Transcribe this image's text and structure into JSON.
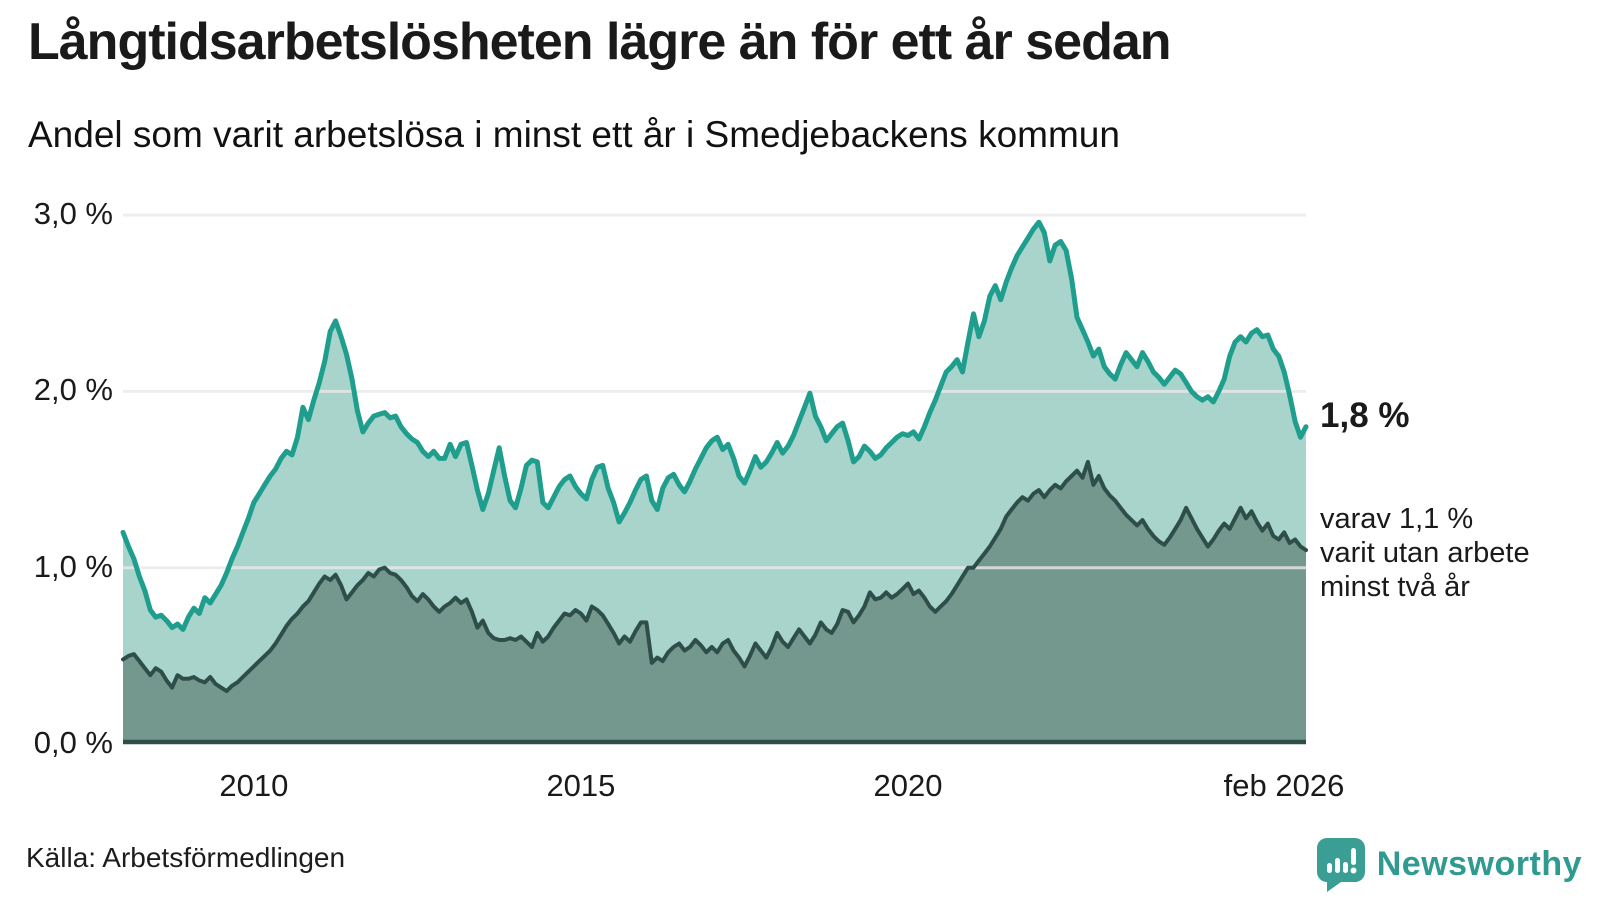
{
  "title": "Långtidsarbetslösheten lägre än för ett år sedan",
  "subtitle": "Andel som varit arbetslösa i minst ett år i Smedjebackens kommun",
  "source": "Källa: Arbetsförmedlingen",
  "branding": {
    "name": "Newsworthy"
  },
  "annotations": {
    "latest_total": "1,8 %",
    "secondary": "varav 1,1 %\nvarit utan arbete\nminst två år"
  },
  "colors": {
    "upper_stroke": "#1f9e8e",
    "upper_fill": "#a8d4cb",
    "lower_stroke": "#2e4f49",
    "lower_fill": "#74978e",
    "grid": "#e8e8e8",
    "brand_teal": "#2f9a8f",
    "icon_teal": "#3a9e94",
    "text": "#1a1a1a"
  },
  "chart_data": {
    "type": "area",
    "title": "Långtidsarbetslösheten lägre än för ett år sedan",
    "subtitle": "Andel som varit arbetslösa i minst ett år i Smedjebackens kommun",
    "unit": "%",
    "x_start_year": 2008,
    "x_start_month": 1,
    "x_end_label": "feb 2026",
    "step_months": 1,
    "ylim": [
      0,
      3.0
    ],
    "grid": "horizontal",
    "y_ticks": [
      {
        "label": "0,0 %",
        "value": 0
      },
      {
        "label": "1,0 %",
        "value": 1
      },
      {
        "label": "2,0 %",
        "value": 2
      },
      {
        "label": "3,0 %",
        "value": 3
      }
    ],
    "x_ticks": [
      {
        "label": "2010",
        "month_index": 24
      },
      {
        "label": "2015",
        "month_index": 84
      },
      {
        "label": "2020",
        "month_index": 144
      },
      {
        "label": "feb 2026",
        "month_index": 217
      }
    ],
    "series": [
      {
        "name": "Andel arbetslösa minst ett år",
        "latest_value": 1.8,
        "values": [
          1.2,
          1.12,
          1.05,
          0.95,
          0.87,
          0.76,
          0.72,
          0.73,
          0.7,
          0.66,
          0.68,
          0.65,
          0.72,
          0.77,
          0.74,
          0.83,
          0.8,
          0.85,
          0.9,
          0.97,
          1.05,
          1.12,
          1.2,
          1.28,
          1.37,
          1.42,
          1.47,
          1.52,
          1.56,
          1.62,
          1.66,
          1.64,
          1.74,
          1.91,
          1.84,
          1.95,
          2.05,
          2.17,
          2.34,
          2.4,
          2.31,
          2.21,
          2.07,
          1.89,
          1.77,
          1.82,
          1.86,
          1.87,
          1.88,
          1.85,
          1.86,
          1.8,
          1.76,
          1.73,
          1.71,
          1.66,
          1.63,
          1.66,
          1.62,
          1.62,
          1.7,
          1.63,
          1.7,
          1.71,
          1.58,
          1.44,
          1.33,
          1.42,
          1.55,
          1.68,
          1.52,
          1.38,
          1.34,
          1.45,
          1.58,
          1.61,
          1.6,
          1.37,
          1.34,
          1.4,
          1.46,
          1.5,
          1.52,
          1.46,
          1.42,
          1.39,
          1.5,
          1.57,
          1.58,
          1.45,
          1.37,
          1.26,
          1.31,
          1.37,
          1.44,
          1.5,
          1.52,
          1.38,
          1.33,
          1.45,
          1.51,
          1.53,
          1.47,
          1.43,
          1.49,
          1.56,
          1.62,
          1.68,
          1.72,
          1.74,
          1.67,
          1.7,
          1.62,
          1.52,
          1.48,
          1.55,
          1.63,
          1.57,
          1.6,
          1.65,
          1.71,
          1.65,
          1.69,
          1.75,
          1.83,
          1.91,
          1.99,
          1.86,
          1.8,
          1.72,
          1.76,
          1.8,
          1.82,
          1.72,
          1.6,
          1.63,
          1.69,
          1.66,
          1.62,
          1.64,
          1.68,
          1.71,
          1.74,
          1.76,
          1.75,
          1.77,
          1.73,
          1.8,
          1.88,
          1.95,
          2.03,
          2.11,
          2.14,
          2.18,
          2.11,
          2.28,
          2.44,
          2.31,
          2.4,
          2.54,
          2.6,
          2.52,
          2.62,
          2.7,
          2.77,
          2.82,
          2.87,
          2.92,
          2.96,
          2.9,
          2.74,
          2.83,
          2.85,
          2.8,
          2.64,
          2.42,
          2.35,
          2.28,
          2.2,
          2.24,
          2.14,
          2.1,
          2.07,
          2.15,
          2.22,
          2.18,
          2.14,
          2.22,
          2.17,
          2.11,
          2.08,
          2.04,
          2.08,
          2.12,
          2.1,
          2.05,
          2.0,
          1.97,
          1.95,
          1.97,
          1.94,
          2.0,
          2.07,
          2.2,
          2.28,
          2.31,
          2.28,
          2.33,
          2.35,
          2.31,
          2.32,
          2.24,
          2.2,
          2.11,
          1.98,
          1.83,
          1.74,
          1.8
        ]
      },
      {
        "name": "varav utan arbete minst två år",
        "latest_value": 1.1,
        "values": [
          0.48,
          0.5,
          0.51,
          0.47,
          0.43,
          0.39,
          0.43,
          0.41,
          0.36,
          0.32,
          0.39,
          0.37,
          0.37,
          0.38,
          0.36,
          0.35,
          0.38,
          0.34,
          0.32,
          0.3,
          0.33,
          0.35,
          0.38,
          0.41,
          0.44,
          0.47,
          0.5,
          0.53,
          0.57,
          0.62,
          0.67,
          0.71,
          0.74,
          0.78,
          0.81,
          0.86,
          0.91,
          0.95,
          0.93,
          0.96,
          0.9,
          0.82,
          0.86,
          0.9,
          0.93,
          0.97,
          0.95,
          0.99,
          1.0,
          0.97,
          0.96,
          0.93,
          0.89,
          0.84,
          0.81,
          0.85,
          0.82,
          0.78,
          0.75,
          0.78,
          0.8,
          0.83,
          0.8,
          0.82,
          0.75,
          0.66,
          0.7,
          0.63,
          0.6,
          0.59,
          0.59,
          0.6,
          0.59,
          0.61,
          0.58,
          0.55,
          0.63,
          0.58,
          0.61,
          0.66,
          0.7,
          0.74,
          0.73,
          0.76,
          0.74,
          0.7,
          0.78,
          0.76,
          0.73,
          0.68,
          0.63,
          0.57,
          0.61,
          0.58,
          0.64,
          0.69,
          0.69,
          0.46,
          0.49,
          0.47,
          0.52,
          0.55,
          0.57,
          0.53,
          0.55,
          0.59,
          0.56,
          0.52,
          0.55,
          0.52,
          0.57,
          0.59,
          0.53,
          0.49,
          0.44,
          0.5,
          0.57,
          0.53,
          0.49,
          0.55,
          0.63,
          0.58,
          0.55,
          0.6,
          0.65,
          0.61,
          0.57,
          0.62,
          0.69,
          0.65,
          0.63,
          0.68,
          0.76,
          0.75,
          0.69,
          0.73,
          0.78,
          0.86,
          0.82,
          0.83,
          0.86,
          0.83,
          0.85,
          0.88,
          0.91,
          0.85,
          0.87,
          0.83,
          0.78,
          0.75,
          0.78,
          0.81,
          0.85,
          0.9,
          0.95,
          1.0,
          1.0,
          1.04,
          1.08,
          1.12,
          1.17,
          1.22,
          1.29,
          1.33,
          1.37,
          1.4,
          1.38,
          1.42,
          1.44,
          1.4,
          1.44,
          1.47,
          1.45,
          1.49,
          1.52,
          1.55,
          1.51,
          1.6,
          1.47,
          1.52,
          1.45,
          1.41,
          1.38,
          1.34,
          1.3,
          1.27,
          1.24,
          1.27,
          1.22,
          1.18,
          1.15,
          1.13,
          1.17,
          1.22,
          1.27,
          1.34,
          1.28,
          1.22,
          1.17,
          1.12,
          1.16,
          1.21,
          1.25,
          1.22,
          1.28,
          1.34,
          1.28,
          1.32,
          1.26,
          1.21,
          1.25,
          1.18,
          1.16,
          1.2,
          1.14,
          1.16,
          1.12,
          1.1
        ]
      }
    ]
  }
}
